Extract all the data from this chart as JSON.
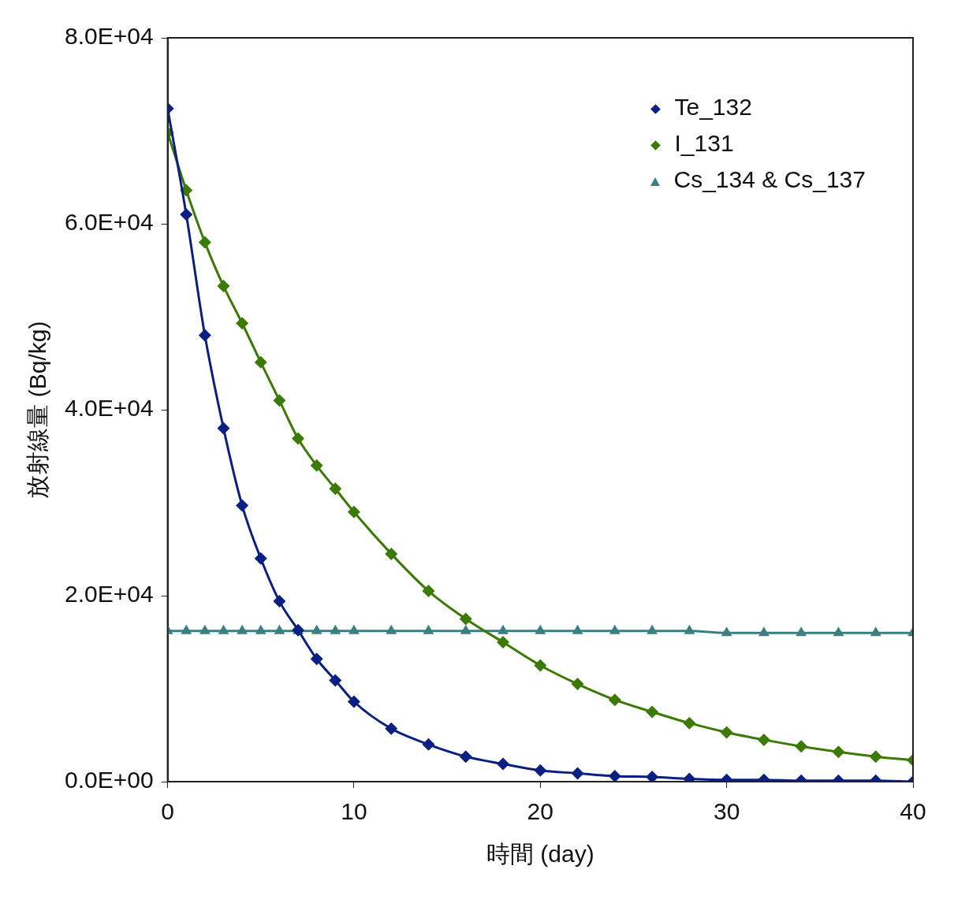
{
  "chart_data": {
    "type": "line",
    "xlabel": "時間 (day)",
    "ylabel": "放射線量 (Bq/kg)",
    "x": [
      0,
      1,
      2,
      3,
      4,
      5,
      6,
      7,
      8,
      9,
      10,
      12,
      14,
      16,
      18,
      20,
      22,
      24,
      26,
      28,
      30,
      32,
      34,
      36,
      38,
      40
    ],
    "xlim": [
      0,
      40
    ],
    "xticks": [
      0,
      10,
      20,
      30,
      40
    ],
    "ylim": [
      0,
      80000
    ],
    "yticks": [
      {
        "value": 0,
        "label": "0.0E+00"
      },
      {
        "value": 20000,
        "label": "2.0E+04"
      },
      {
        "value": 40000,
        "label": "4.0E+04"
      },
      {
        "value": 60000,
        "label": "6.0E+04"
      },
      {
        "value": 80000,
        "label": "8.0E+04"
      }
    ],
    "grid": false,
    "legend": "top right",
    "marker": "diamond",
    "series": [
      {
        "name": "Te_132",
        "color": "#0a1f82",
        "values": [
          72400,
          61000,
          48000,
          38000,
          29700,
          24000,
          19400,
          16300,
          13200,
          10900,
          8600,
          5700,
          4000,
          2700,
          1900,
          1200,
          900,
          600,
          500,
          300,
          200,
          200,
          100,
          100,
          100,
          0
        ]
      },
      {
        "name": "I_131",
        "color": "#3a7a05",
        "values": [
          69800,
          63600,
          58000,
          53300,
          49300,
          45100,
          41000,
          36900,
          34000,
          31500,
          29000,
          24500,
          20500,
          17500,
          15000,
          12500,
          10500,
          8800,
          7500,
          6300,
          5300,
          4500,
          3800,
          3200,
          2700,
          2300
        ]
      },
      {
        "name": "Cs_134 & Cs_137",
        "color": "#3a8080",
        "marker": "triangle",
        "values": [
          16200,
          16200,
          16200,
          16200,
          16200,
          16200,
          16200,
          16200,
          16200,
          16200,
          16200,
          16200,
          16200,
          16200,
          16200,
          16200,
          16200,
          16200,
          16200,
          16200,
          16000,
          16000,
          16000,
          16000,
          16000,
          16000
        ]
      }
    ]
  }
}
